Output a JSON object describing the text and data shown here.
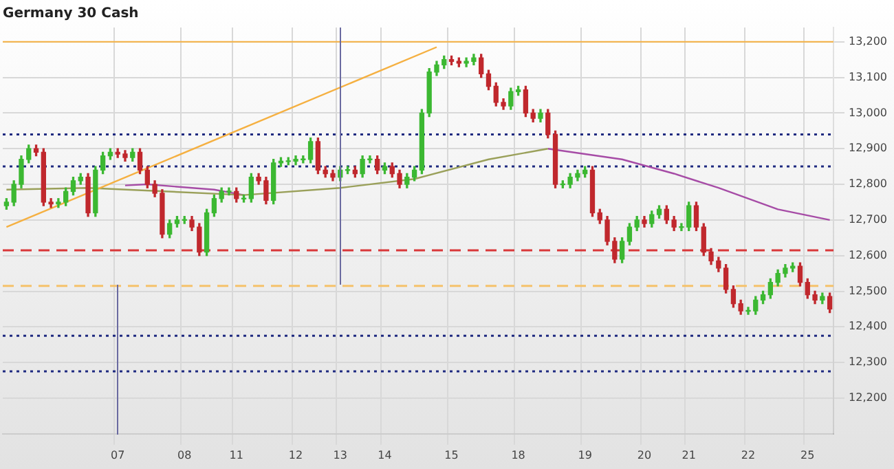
{
  "chart_data": {
    "type": "candlestick",
    "title": "Germany 30 Cash",
    "categories": [
      null,
      null,
      null,
      null,
      null,
      null,
      null,
      null,
      null,
      null,
      null,
      null,
      null,
      null,
      null,
      "07",
      null,
      null,
      null,
      null,
      null,
      null,
      null,
      null,
      "08",
      null,
      null,
      null,
      null,
      null,
      null,
      "11",
      null,
      null,
      null,
      null,
      null,
      null,
      null,
      "12",
      null,
      null,
      null,
      null,
      null,
      "13",
      null,
      null,
      null,
      null,
      null,
      "14",
      null,
      null,
      null,
      null,
      null,
      null,
      null,
      null,
      "15",
      null,
      null,
      null,
      null,
      null,
      null,
      null,
      null,
      "18",
      null,
      null,
      null,
      null,
      null,
      null,
      null,
      null,
      "19",
      null,
      null,
      null,
      null,
      null,
      null,
      null,
      "20",
      null,
      null,
      null,
      null,
      null,
      "21",
      null,
      null,
      null,
      null,
      null,
      null,
      null,
      "22",
      null,
      null,
      null,
      null,
      null,
      null,
      null,
      "25",
      null,
      null,
      null
    ],
    "ohlc": [
      [
        12740,
        12760,
        12730,
        12750
      ],
      [
        12750,
        12810,
        12740,
        12800
      ],
      [
        12800,
        12880,
        12790,
        12870
      ],
      [
        12870,
        12910,
        12860,
        12900
      ],
      [
        12900,
        12910,
        12880,
        12890
      ],
      [
        12890,
        12900,
        12740,
        12750
      ],
      [
        12750,
        12760,
        12735,
        12745
      ],
      [
        12745,
        12760,
        12735,
        12750
      ],
      [
        12750,
        12790,
        12740,
        12780
      ],
      [
        12780,
        12820,
        12770,
        12810
      ],
      [
        12810,
        12830,
        12800,
        12820
      ],
      [
        12820,
        12830,
        12710,
        12720
      ],
      [
        12720,
        12850,
        12710,
        12840
      ],
      [
        12840,
        12890,
        12830,
        12880
      ],
      [
        12880,
        12900,
        12870,
        12890
      ],
      [
        12890,
        12900,
        12875,
        12885
      ],
      [
        12885,
        12895,
        12865,
        12875
      ],
      [
        12875,
        12900,
        12865,
        12890
      ],
      [
        12890,
        12900,
        12830,
        12840
      ],
      [
        12840,
        12850,
        12790,
        12800
      ],
      [
        12800,
        12810,
        12765,
        12775
      ],
      [
        12775,
        12785,
        12650,
        12660
      ],
      [
        12660,
        12700,
        12650,
        12690
      ],
      [
        12690,
        12710,
        12680,
        12700
      ],
      [
        12700,
        12710,
        12690,
        12700
      ],
      [
        12700,
        12710,
        12670,
        12680
      ],
      [
        12680,
        12690,
        12600,
        12610
      ],
      [
        12610,
        12730,
        12600,
        12720
      ],
      [
        12720,
        12770,
        12710,
        12760
      ],
      [
        12760,
        12790,
        12750,
        12780
      ],
      [
        12780,
        12790,
        12770,
        12780
      ],
      [
        12780,
        12790,
        12750,
        12760
      ],
      [
        12760,
        12770,
        12750,
        12760
      ],
      [
        12760,
        12830,
        12750,
        12820
      ],
      [
        12820,
        12830,
        12800,
        12810
      ],
      [
        12810,
        12820,
        12745,
        12755
      ],
      [
        12755,
        12870,
        12745,
        12860
      ],
      [
        12860,
        12875,
        12850,
        12865
      ],
      [
        12865,
        12875,
        12855,
        12865
      ],
      [
        12865,
        12880,
        12855,
        12870
      ],
      [
        12870,
        12880,
        12860,
        12870
      ],
      [
        12870,
        12930,
        12860,
        12920
      ],
      [
        12920,
        12930,
        12830,
        12840
      ],
      [
        12840,
        12850,
        12820,
        12830
      ],
      [
        12830,
        12840,
        12810,
        12820
      ],
      [
        12820,
        12850,
        12810,
        12840
      ],
      [
        12840,
        12850,
        12830,
        12840
      ],
      [
        12840,
        12850,
        12820,
        12830
      ],
      [
        12830,
        12880,
        12820,
        12870
      ],
      [
        12870,
        12880,
        12860,
        12870
      ],
      [
        12870,
        12880,
        12830,
        12840
      ],
      [
        12840,
        12860,
        12830,
        12850
      ],
      [
        12850,
        12860,
        12820,
        12830
      ],
      [
        12830,
        12840,
        12790,
        12800
      ],
      [
        12800,
        12830,
        12790,
        12820
      ],
      [
        12820,
        12850,
        12810,
        12840
      ],
      [
        12840,
        13010,
        12830,
        13000
      ],
      [
        13000,
        13125,
        12990,
        13115
      ],
      [
        13115,
        13145,
        13105,
        13135
      ],
      [
        13135,
        13160,
        13125,
        13150
      ],
      [
        13150,
        13160,
        13135,
        13145
      ],
      [
        13145,
        13155,
        13130,
        13140
      ],
      [
        13140,
        13155,
        13130,
        13145
      ],
      [
        13145,
        13165,
        13135,
        13155
      ],
      [
        13155,
        13165,
        13100,
        13110
      ],
      [
        13110,
        13120,
        13065,
        13075
      ],
      [
        13075,
        13085,
        13020,
        13030
      ],
      [
        13030,
        13040,
        13010,
        13020
      ],
      [
        13020,
        13070,
        13010,
        13060
      ],
      [
        13060,
        13075,
        13050,
        13065
      ],
      [
        13065,
        13075,
        12990,
        13000
      ],
      [
        13000,
        13010,
        12975,
        12985
      ],
      [
        12985,
        13010,
        12975,
        13000
      ],
      [
        13000,
        13010,
        12930,
        12940
      ],
      [
        12940,
        12950,
        12790,
        12800
      ],
      [
        12800,
        12810,
        12790,
        12800
      ],
      [
        12800,
        12830,
        12790,
        12820
      ],
      [
        12820,
        12840,
        12810,
        12830
      ],
      [
        12830,
        12850,
        12820,
        12840
      ],
      [
        12840,
        12850,
        12710,
        12720
      ],
      [
        12720,
        12730,
        12690,
        12700
      ],
      [
        12700,
        12710,
        12630,
        12640
      ],
      [
        12640,
        12650,
        12580,
        12590
      ],
      [
        12590,
        12650,
        12580,
        12640
      ],
      [
        12640,
        12690,
        12630,
        12680
      ],
      [
        12680,
        12710,
        12670,
        12700
      ],
      [
        12700,
        12710,
        12680,
        12690
      ],
      [
        12690,
        12725,
        12680,
        12715
      ],
      [
        12715,
        12740,
        12705,
        12730
      ],
      [
        12730,
        12740,
        12690,
        12700
      ],
      [
        12700,
        12710,
        12670,
        12680
      ],
      [
        12680,
        12690,
        12670,
        12680
      ],
      [
        12680,
        12750,
        12670,
        12740
      ],
      [
        12740,
        12750,
        12670,
        12680
      ],
      [
        12680,
        12690,
        12600,
        12610
      ],
      [
        12610,
        12620,
        12575,
        12585
      ],
      [
        12585,
        12595,
        12555,
        12565
      ],
      [
        12565,
        12575,
        12495,
        12505
      ],
      [
        12505,
        12515,
        12455,
        12465
      ],
      [
        12465,
        12475,
        12435,
        12445
      ],
      [
        12445,
        12455,
        12435,
        12445
      ],
      [
        12445,
        12485,
        12435,
        12475
      ],
      [
        12475,
        12500,
        12465,
        12490
      ],
      [
        12490,
        12535,
        12480,
        12525
      ],
      [
        12525,
        12560,
        12515,
        12550
      ],
      [
        12550,
        12575,
        12540,
        12565
      ],
      [
        12565,
        12580,
        12555,
        12570
      ],
      [
        12570,
        12580,
        12515,
        12525
      ],
      [
        12525,
        12535,
        12480,
        12490
      ],
      [
        12490,
        12500,
        12465,
        12475
      ],
      [
        12475,
        12495,
        12465,
        12485
      ],
      [
        12485,
        12495,
        12440,
        12450
      ]
    ],
    "series": [
      {
        "type": "line",
        "color": "#f5b041",
        "values": [
          12680,
          null,
          null,
          null,
          null,
          null,
          null,
          null,
          null,
          null,
          null,
          null,
          null,
          null,
          null,
          null,
          null,
          null,
          null,
          null,
          null,
          null,
          null,
          null,
          null,
          null,
          null,
          null,
          null,
          null,
          null,
          null,
          null,
          null,
          null,
          null,
          null,
          null,
          null,
          null,
          null,
          null,
          null,
          null,
          null,
          null,
          null,
          null,
          null,
          null,
          null,
          null,
          null,
          null,
          null,
          null,
          null,
          null,
          13185,
          null,
          null,
          null,
          null,
          null,
          null,
          null,
          null,
          null,
          null,
          null,
          null,
          null,
          null,
          null,
          null,
          null,
          null,
          null,
          null,
          null,
          null,
          null,
          null,
          null,
          null,
          null,
          null,
          null,
          null,
          null,
          null,
          null,
          null,
          null,
          null,
          null,
          null,
          null,
          null,
          null,
          null,
          null,
          null,
          null,
          null,
          null,
          null,
          null,
          null,
          null,
          null,
          null
        ]
      },
      {
        "type": "line",
        "color": "#9aa05a",
        "values": [
          12785,
          null,
          null,
          null,
          null,
          null,
          null,
          null,
          null,
          null,
          null,
          12790,
          null,
          null,
          null,
          null,
          null,
          null,
          null,
          null,
          null,
          null,
          null,
          null,
          null,
          null,
          null,
          null,
          null,
          null,
          null,
          null,
          12770,
          null,
          null,
          null,
          null,
          null,
          null,
          null,
          null,
          null,
          null,
          null,
          null,
          12790,
          null,
          null,
          null,
          null,
          null,
          null,
          null,
          null,
          null,
          12815,
          null,
          null,
          null,
          null,
          null,
          null,
          null,
          null,
          null,
          12870,
          null,
          null,
          null,
          null,
          null,
          null,
          null,
          12900,
          null,
          null,
          null,
          null,
          null,
          null,
          null,
          null,
          null,
          null,
          null,
          null,
          null,
          null,
          null,
          null,
          null,
          null,
          null,
          null,
          null,
          null,
          null,
          null,
          null,
          null,
          null,
          null,
          null,
          null,
          null,
          null,
          null,
          null,
          null,
          null,
          null,
          null
        ]
      },
      {
        "type": "line",
        "color": "#a64ca6",
        "values": [
          null,
          null,
          null,
          null,
          null,
          null,
          null,
          null,
          null,
          null,
          null,
          null,
          null,
          null,
          null,
          null,
          12797,
          null,
          null,
          12800,
          null,
          null,
          null,
          null,
          null,
          null,
          null,
          null,
          12785,
          null,
          null,
          null,
          12770,
          null,
          null,
          null,
          null,
          null,
          null,
          null,
          null,
          null,
          null,
          null,
          null,
          null,
          null,
          null,
          null,
          null,
          null,
          null,
          null,
          null,
          null,
          null,
          null,
          null,
          null,
          null,
          null,
          null,
          null,
          null,
          null,
          null,
          null,
          null,
          null,
          null,
          null,
          null,
          null,
          null,
          null,
          null,
          null,
          null,
          null,
          null,
          null,
          null,
          null,
          null,
          null,
          null,
          null,
          null,
          null,
          null,
          null,
          null,
          null,
          null,
          null,
          null,
          null,
          null,
          null,
          null,
          null,
          null,
          null,
          null,
          null,
          null,
          null,
          null,
          null,
          null,
          null,
          null
        ]
      },
      {
        "type": "line",
        "color": "#a64ca6",
        "values": [
          null,
          null,
          null,
          null,
          null,
          null,
          null,
          null,
          null,
          null,
          null,
          null,
          null,
          null,
          null,
          null,
          null,
          null,
          null,
          null,
          null,
          null,
          null,
          null,
          null,
          null,
          null,
          null,
          null,
          null,
          null,
          null,
          null,
          null,
          null,
          null,
          null,
          null,
          null,
          null,
          null,
          null,
          null,
          null,
          null,
          null,
          null,
          null,
          null,
          null,
          null,
          null,
          null,
          null,
          null,
          null,
          null,
          null,
          null,
          null,
          null,
          null,
          null,
          null,
          null,
          null,
          null,
          null,
          null,
          null,
          null,
          null,
          null,
          12900,
          null,
          null,
          null,
          null,
          null,
          null,
          null,
          null,
          null,
          12870,
          null,
          null,
          null,
          null,
          null,
          null,
          12830,
          null,
          null,
          null,
          null,
          null,
          12790,
          null,
          null,
          null,
          null,
          null,
          null,
          null,
          12730,
          null,
          null,
          null,
          null,
          null,
          null,
          12700
        ]
      }
    ],
    "ylim": [
      12100,
      13240
    ],
    "yticks": [
      {
        "value": 12200,
        "label": "12,200"
      },
      {
        "value": 12300,
        "label": "12,300"
      },
      {
        "value": 12400,
        "label": "12,400"
      },
      {
        "value": 12500,
        "label": "12,500"
      },
      {
        "value": 12600,
        "label": "12,600"
      },
      {
        "value": 12700,
        "label": "12,700"
      },
      {
        "value": 12800,
        "label": "12,800"
      },
      {
        "value": 12900,
        "label": "12,900"
      },
      {
        "value": 13000,
        "label": "13,000"
      },
      {
        "value": 13100,
        "label": "13,100"
      },
      {
        "value": 13200,
        "label": "13,200"
      }
    ],
    "ref_lines": [
      {
        "axis": "y",
        "value": 13200,
        "color": "#f5b041",
        "line_style": "solid"
      },
      {
        "axis": "y",
        "value": 12940,
        "color": "#1f2a80",
        "line_style": "dotted"
      },
      {
        "axis": "y",
        "value": 12850,
        "color": "#1f2a80",
        "line_style": "dotted"
      },
      {
        "axis": "y",
        "value": 12615,
        "color": "#d9383a",
        "line_style": "dashed"
      },
      {
        "axis": "y",
        "value": 12515,
        "color": "#f5c26b",
        "line_style": "dashed"
      },
      {
        "axis": "y",
        "value": 12375,
        "color": "#1f2a80",
        "line_style": "dotted"
      },
      {
        "axis": "y",
        "value": 12275,
        "color": "#1f2a80",
        "line_style": "dotted"
      }
    ],
    "grid": true,
    "legend": false
  }
}
